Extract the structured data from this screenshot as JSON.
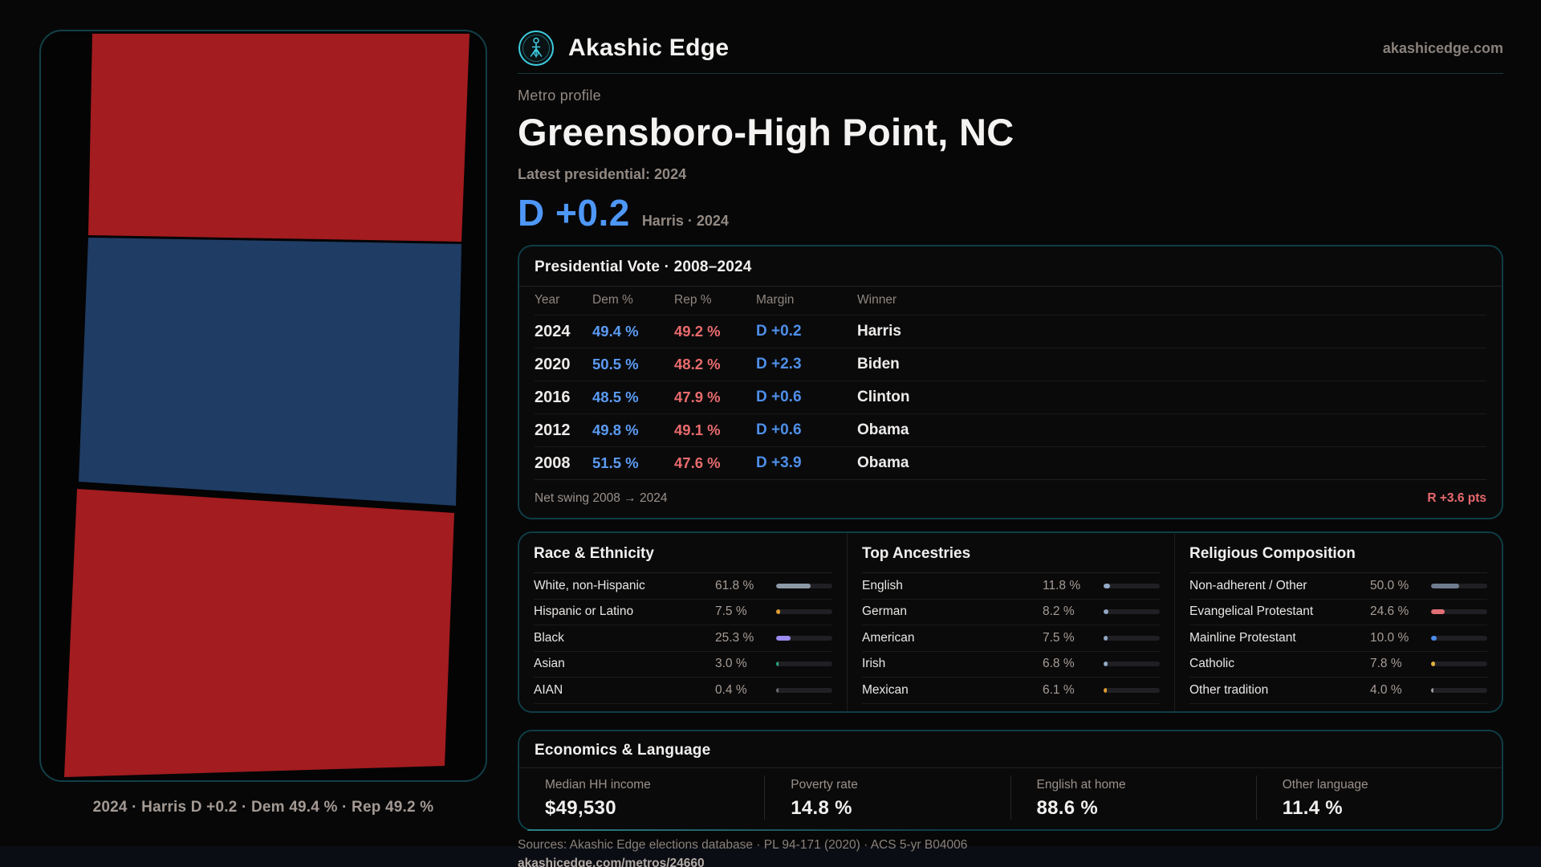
{
  "brand": {
    "name": "Akashic Edge",
    "domain": "akashicedge.com",
    "accent_teal": "#3ecde0",
    "dem_blue": "#5b9bf3",
    "rep_red": "#e96b6d"
  },
  "map": {
    "caption": "2024 · Harris D +0.2 · Dem 49.4 % · Rep 49.2 %",
    "regions": [
      {
        "id": "north-area",
        "color": "#a31c1f"
      },
      {
        "id": "central-area",
        "color": "#1f3c64"
      },
      {
        "id": "south-area",
        "color": "#a31c1f"
      }
    ]
  },
  "profile": {
    "kicker": "Metro profile",
    "title": "Greensboro-High Point, NC",
    "subtitle": "Latest presidential: 2024",
    "headline_margin": "D +0.2",
    "headline_context": "Harris · 2024"
  },
  "vote_table": {
    "title": "Presidential Vote · 2008–2024",
    "columns": [
      "Year",
      "Dem %",
      "Rep %",
      "Margin",
      "Winner"
    ],
    "rows": [
      {
        "year": "2024",
        "dem": "49.4 %",
        "rep": "49.2 %",
        "margin": "D +0.2",
        "winner": "Harris"
      },
      {
        "year": "2020",
        "dem": "50.5 %",
        "rep": "48.2 %",
        "margin": "D +2.3",
        "winner": "Biden"
      },
      {
        "year": "2016",
        "dem": "48.5 %",
        "rep": "47.9 %",
        "margin": "D +0.6",
        "winner": "Clinton"
      },
      {
        "year": "2012",
        "dem": "49.8 %",
        "rep": "49.1 %",
        "margin": "D +0.6",
        "winner": "Obama"
      },
      {
        "year": "2008",
        "dem": "51.5 %",
        "rep": "47.6 %",
        "margin": "D +3.9",
        "winner": "Obama"
      }
    ],
    "footer": {
      "label": "Net swing 2008 → 2024",
      "value": "R +3.6 pts"
    }
  },
  "demographics": [
    {
      "title": "Race & Ethnicity",
      "rows": [
        {
          "label": "White, non-Hispanic",
          "value": "61.8 %",
          "pct": 61.8,
          "color": "#8c99a8"
        },
        {
          "label": "Hispanic or Latino",
          "value": "7.5 %",
          "pct": 7.5,
          "color": "#e09c33"
        },
        {
          "label": "Black",
          "value": "25.3 %",
          "pct": 25.3,
          "color": "#9c8bf0"
        },
        {
          "label": "Asian",
          "value": "3.0 %",
          "pct": 3.0,
          "color": "#2aa87c"
        },
        {
          "label": "AIAN",
          "value": "0.4 %",
          "pct": 0.4,
          "color": "#6a6a70"
        }
      ]
    },
    {
      "title": "Top Ancestries",
      "rows": [
        {
          "label": "English",
          "value": "11.8 %",
          "pct": 11.8,
          "color": "#93a9c6"
        },
        {
          "label": "German",
          "value": "8.2 %",
          "pct": 8.2,
          "color": "#93a9c6"
        },
        {
          "label": "American",
          "value": "7.5 %",
          "pct": 7.5,
          "color": "#93a9c6"
        },
        {
          "label": "Irish",
          "value": "6.8 %",
          "pct": 6.8,
          "color": "#93a9c6"
        },
        {
          "label": "Mexican",
          "value": "6.1 %",
          "pct": 6.1,
          "color": "#e09c33"
        }
      ]
    },
    {
      "title": "Religious Composition",
      "rows": [
        {
          "label": "Non-adherent / Other",
          "value": "50.0 %",
          "pct": 50.0,
          "color": "#6f7c90"
        },
        {
          "label": "Evangelical Protestant",
          "value": "24.6 %",
          "pct": 24.6,
          "color": "#e07076"
        },
        {
          "label": "Mainline Protestant",
          "value": "10.0 %",
          "pct": 10.0,
          "color": "#4d8bea"
        },
        {
          "label": "Catholic",
          "value": "7.8 %",
          "pct": 7.8,
          "color": "#e0b23f"
        },
        {
          "label": "Other tradition",
          "value": "4.0 %",
          "pct": 4.0,
          "color": "#9a9aa2"
        }
      ]
    }
  ],
  "economics": {
    "title": "Economics & Language",
    "stats": [
      {
        "label": "Median HH income",
        "value": "$49,530"
      },
      {
        "label": "Poverty rate",
        "value": "14.8 %"
      },
      {
        "label": "English at home",
        "value": "88.6 %"
      },
      {
        "label": "Other language",
        "value": "11.4 %"
      }
    ]
  },
  "footer": {
    "sources": "Sources: Akashic Edge elections database · PL 94-171 (2020) · ACS 5-yr B04006",
    "permalink": "akashicedge.com/metros/24660"
  }
}
